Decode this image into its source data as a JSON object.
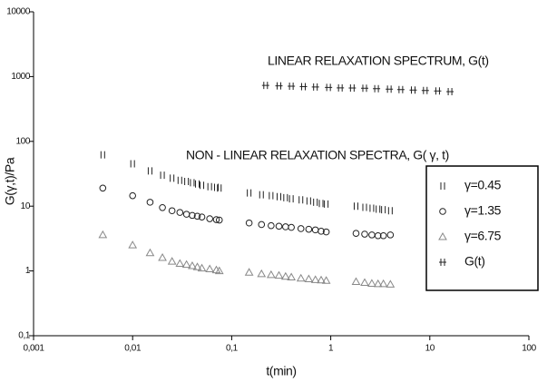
{
  "chart_data": {
    "type": "scatter",
    "x_label": "t(min)",
    "y_label": "G(γ,t)/Pa",
    "annotations": [
      "LINEAR RELAXATION SPECTRUM, G(t)",
      "NON - LINEAR RELAXATION SPECTRA, G( γ, t)"
    ],
    "log_x": true,
    "log_y": true,
    "grid": false,
    "legend": "right",
    "xlim": [
      0.001,
      100
    ],
    "xticks": [
      {
        "value": 0.001,
        "label": "0,001"
      },
      {
        "value": 0.01,
        "label": "0,01"
      },
      {
        "value": 0.1,
        "label": "0,1"
      },
      1,
      10,
      100
    ],
    "ylim": [
      0.1,
      10000
    ],
    "yticks": [
      {
        "value": 0.1,
        "label": "0,1"
      },
      1,
      10,
      100,
      1000,
      10000
    ],
    "series": [
      {
        "name": "γ=0.45",
        "color": "#222222",
        "marker": "bars",
        "x": [
          0.005,
          0.01,
          0.015,
          0.02,
          0.025,
          0.03,
          0.035,
          0.04,
          0.045,
          0.05,
          0.06,
          0.07,
          0.075,
          0.15,
          0.2,
          0.25,
          0.3,
          0.35,
          0.4,
          0.5,
          0.6,
          0.7,
          0.8,
          0.9,
          1.8,
          2.2,
          2.6,
          3.0,
          3.4,
          4.0
        ],
        "values": [
          62,
          45,
          35,
          30,
          27,
          25,
          24,
          23,
          22,
          21,
          20,
          19.5,
          19,
          16,
          15,
          14.5,
          14,
          13.5,
          13,
          12.5,
          12,
          11.5,
          11,
          10.8,
          10,
          9.6,
          9.3,
          9,
          8.8,
          8.5
        ]
      },
      {
        "name": "γ=1.35",
        "color": "#222222",
        "marker": "circle",
        "x": [
          0.005,
          0.01,
          0.015,
          0.02,
          0.025,
          0.03,
          0.035,
          0.04,
          0.045,
          0.05,
          0.06,
          0.07,
          0.075,
          0.15,
          0.2,
          0.25,
          0.3,
          0.35,
          0.4,
          0.5,
          0.6,
          0.7,
          0.8,
          0.9,
          1.8,
          2.2,
          2.6,
          3.0,
          3.4,
          4.0
        ],
        "values": [
          19,
          14.5,
          11.5,
          9.5,
          8.5,
          8,
          7.5,
          7.2,
          7,
          6.8,
          6.4,
          6.2,
          6.1,
          5.5,
          5.2,
          5,
          4.9,
          4.8,
          4.7,
          4.5,
          4.4,
          4.3,
          4.1,
          4,
          3.8,
          3.7,
          3.6,
          3.5,
          3.5,
          3.6
        ]
      },
      {
        "name": "γ=6.75",
        "color": "#888888",
        "marker": "triangle",
        "x": [
          0.005,
          0.01,
          0.015,
          0.02,
          0.025,
          0.03,
          0.035,
          0.04,
          0.045,
          0.05,
          0.06,
          0.07,
          0.075,
          0.15,
          0.2,
          0.25,
          0.3,
          0.35,
          0.4,
          0.5,
          0.6,
          0.7,
          0.8,
          0.9,
          1.8,
          2.2,
          2.6,
          3.0,
          3.4,
          4.0
        ],
        "values": [
          3.6,
          2.5,
          1.9,
          1.6,
          1.4,
          1.3,
          1.25,
          1.2,
          1.15,
          1.1,
          1.07,
          1.03,
          1.0,
          0.95,
          0.9,
          0.87,
          0.85,
          0.82,
          0.8,
          0.77,
          0.75,
          0.73,
          0.72,
          0.71,
          0.68,
          0.66,
          0.64,
          0.63,
          0.63,
          0.62
        ]
      },
      {
        "name": "G(t)",
        "color": "#222222",
        "marker": "hash",
        "x": [
          0.22,
          0.3,
          0.4,
          0.53,
          0.7,
          0.95,
          1.25,
          1.65,
          2.2,
          2.9,
          3.9,
          5.1,
          6.8,
          9,
          12,
          16
        ],
        "values": [
          730,
          720,
          710,
          700,
          690,
          680,
          670,
          665,
          660,
          650,
          640,
          630,
          620,
          610,
          600,
          585
        ]
      }
    ]
  }
}
